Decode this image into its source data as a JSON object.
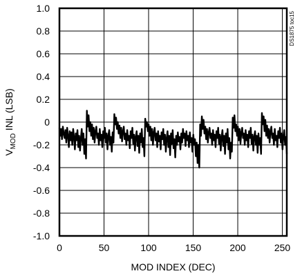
{
  "chart_data": {
    "type": "line",
    "title": "",
    "xlabel": "MOD INDEX (DEC)",
    "ylabel": {
      "prefix": "V",
      "subscript": "MOD",
      "suffix": " INL (LSB)"
    },
    "xlim": [
      0,
      255
    ],
    "ylim": [
      -1.0,
      1.0
    ],
    "x_ticks": [
      0,
      50,
      100,
      150,
      200,
      250
    ],
    "x_tick_labels": [
      "0",
      "50",
      "100",
      "150",
      "200",
      "250"
    ],
    "y_ticks": [
      1.0,
      0.8,
      0.6,
      0.4,
      0.2,
      0.0,
      -0.2,
      -0.4,
      -0.6,
      -0.8,
      -1.0
    ],
    "y_tick_labels": [
      "1.0",
      "0.8",
      "0.6",
      "0.4",
      "0.2",
      "0",
      "-0.2",
      "-0.4",
      "-0.6",
      "-0.8",
      "-1.0"
    ],
    "grid": true,
    "series": [
      {
        "values": [
          -0.05,
          -0.12,
          -0.06,
          -0.15,
          -0.04,
          -0.1,
          -0.14,
          -0.07,
          -0.18,
          -0.05,
          -0.12,
          -0.22,
          -0.08,
          -0.16,
          -0.09,
          -0.2,
          -0.06,
          -0.13,
          -0.24,
          -0.1,
          -0.16,
          -0.07,
          -0.22,
          -0.12,
          -0.25,
          -0.14,
          -0.06,
          -0.2,
          -0.1,
          -0.28,
          -0.15,
          -0.32,
          0.1,
          -0.04,
          0.06,
          -0.08,
          0.0,
          -0.12,
          -0.02,
          -0.15,
          -0.05,
          -0.18,
          -0.08,
          -0.04,
          -0.14,
          -0.1,
          -0.2,
          -0.06,
          -0.16,
          -0.11,
          -0.22,
          -0.08,
          -0.14,
          -0.05,
          -0.18,
          -0.1,
          -0.24,
          -0.12,
          -0.07,
          -0.2,
          -0.13,
          -0.26,
          -0.09,
          -0.18,
          0.07,
          -0.02,
          0.04,
          -0.06,
          0.0,
          -0.1,
          -0.03,
          -0.14,
          -0.05,
          -0.17,
          -0.08,
          -0.04,
          -0.15,
          -0.1,
          -0.2,
          -0.07,
          -0.16,
          -0.12,
          -0.23,
          -0.08,
          -0.14,
          -0.05,
          -0.19,
          -0.11,
          -0.25,
          -0.13,
          -0.08,
          -0.21,
          -0.12,
          -0.27,
          -0.1,
          -0.18,
          -0.06,
          -0.22,
          -0.14,
          -0.3,
          0.03,
          -0.04,
          0.0,
          -0.08,
          -0.02,
          -0.12,
          -0.04,
          -0.16,
          -0.06,
          -0.2,
          -0.09,
          -0.05,
          -0.16,
          -0.1,
          -0.22,
          -0.08,
          -0.17,
          -0.12,
          -0.24,
          -0.09,
          -0.15,
          -0.06,
          -0.2,
          -0.11,
          -0.26,
          -0.14,
          -0.08,
          -0.22,
          -0.12,
          -0.29,
          -0.1,
          -0.19,
          -0.07,
          -0.23,
          -0.15,
          -0.31,
          -0.12,
          -0.2,
          -0.09,
          -0.17,
          -0.13,
          -0.24,
          -0.1,
          -0.18,
          -0.06,
          -0.14,
          -0.1,
          -0.21,
          -0.08,
          -0.16,
          -0.12,
          -0.22,
          -0.09,
          -0.18,
          -0.14,
          -0.26,
          -0.11,
          -0.2,
          -0.15,
          -0.3,
          -0.18,
          -0.36,
          -0.2,
          -0.4,
          -0.02,
          -0.12,
          0.05,
          -0.06,
          0.02,
          -0.1,
          -0.04,
          -0.15,
          -0.06,
          -0.18,
          -0.09,
          -0.05,
          -0.14,
          -0.1,
          -0.2,
          -0.07,
          -0.16,
          -0.11,
          -0.22,
          -0.08,
          -0.14,
          -0.05,
          -0.19,
          -0.11,
          -0.25,
          -0.13,
          -0.07,
          -0.21,
          -0.12,
          -0.28,
          -0.1,
          -0.18,
          -0.06,
          -0.24,
          -0.14,
          -0.32,
          -0.18,
          -0.26,
          0.04,
          -0.05,
          0.06,
          -0.08,
          -0.02,
          -0.12,
          -0.04,
          -0.16,
          -0.06,
          -0.19,
          -0.09,
          -0.05,
          -0.14,
          -0.1,
          -0.2,
          -0.07,
          -0.16,
          -0.11,
          -0.22,
          -0.08,
          -0.14,
          -0.05,
          -0.19,
          -0.11,
          -0.25,
          -0.13,
          -0.08,
          -0.2,
          -0.12,
          -0.27,
          -0.1,
          -0.2,
          -0.14,
          -0.28,
          0.08,
          -0.02,
          0.05,
          -0.08,
          0.02,
          -0.12,
          -0.03,
          -0.14,
          -0.06,
          -0.18,
          -0.08,
          -0.04,
          -0.14,
          -0.1,
          -0.2,
          -0.06,
          -0.16,
          -0.12,
          -0.22,
          -0.08,
          -0.14,
          -0.05,
          -0.18,
          -0.1,
          -0.24,
          -0.12,
          -0.07,
          -0.2,
          -0.13,
          -0.28
        ]
      }
    ],
    "annotations": [
      "DS1875 toc15"
    ]
  }
}
